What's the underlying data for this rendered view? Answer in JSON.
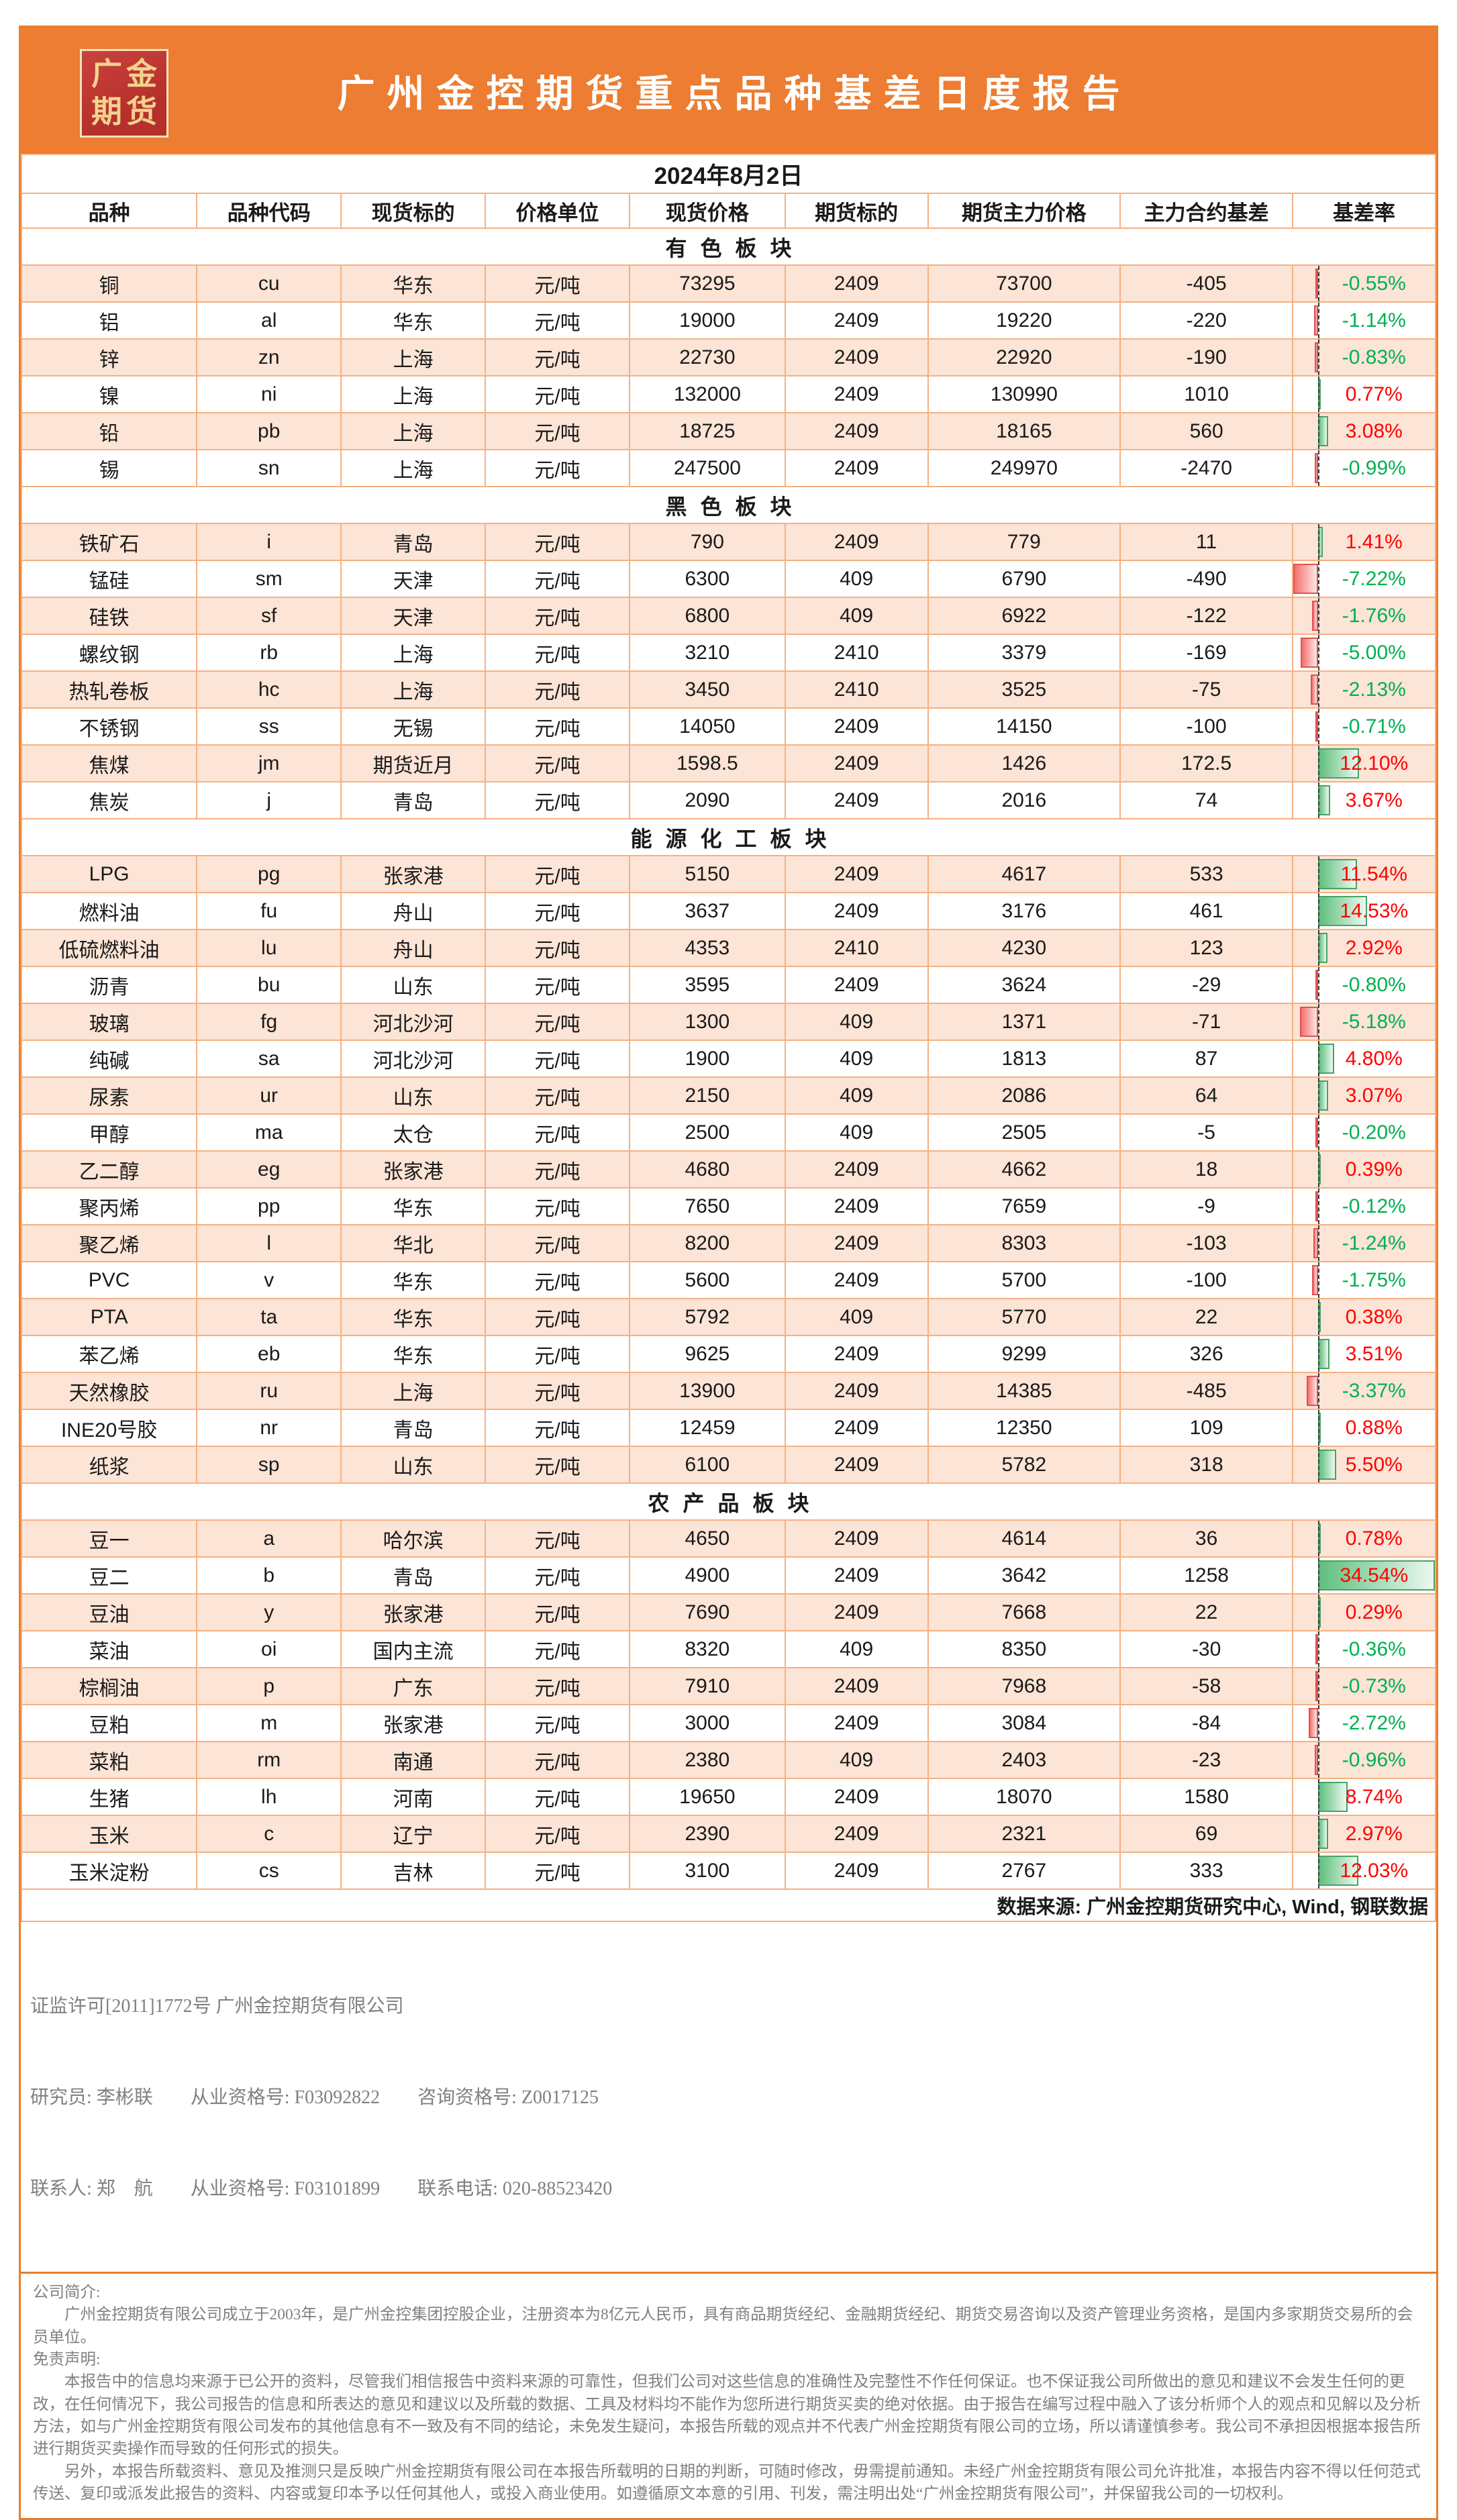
{
  "banner": {
    "logo_line1": "广金",
    "logo_line2": "期货",
    "title": "广州金控期货重点品种基差日度报告"
  },
  "date": "2024年8月2日",
  "table": {
    "columns": [
      "品种",
      "品种代码",
      "现货标的",
      "价格单位",
      "现货价格",
      "期货标的",
      "期货主力价格",
      "主力合约基差",
      "基差率"
    ],
    "databar": {
      "min": -7.22,
      "max": 34.54
    },
    "sections": [
      {
        "title": "有色板块",
        "rows": [
          [
            "铜",
            "cu",
            "华东",
            "元/吨",
            "73295",
            "2409",
            "73700",
            "-405",
            "-0.55%",
            -0.55
          ],
          [
            "铝",
            "al",
            "华东",
            "元/吨",
            "19000",
            "2409",
            "19220",
            "-220",
            "-1.14%",
            -1.14
          ],
          [
            "锌",
            "zn",
            "上海",
            "元/吨",
            "22730",
            "2409",
            "22920",
            "-190",
            "-0.83%",
            -0.83
          ],
          [
            "镍",
            "ni",
            "上海",
            "元/吨",
            "132000",
            "2409",
            "130990",
            "1010",
            "0.77%",
            0.77
          ],
          [
            "铅",
            "pb",
            "上海",
            "元/吨",
            "18725",
            "2409",
            "18165",
            "560",
            "3.08%",
            3.08
          ],
          [
            "锡",
            "sn",
            "上海",
            "元/吨",
            "247500",
            "2409",
            "249970",
            "-2470",
            "-0.99%",
            -0.99
          ]
        ]
      },
      {
        "title": "黑色板块",
        "rows": [
          [
            "铁矿石",
            "i",
            "青岛",
            "元/吨",
            "790",
            "2409",
            "779",
            "11",
            "1.41%",
            1.41
          ],
          [
            "锰硅",
            "sm",
            "天津",
            "元/吨",
            "6300",
            "409",
            "6790",
            "-490",
            "-7.22%",
            -7.22
          ],
          [
            "硅铁",
            "sf",
            "天津",
            "元/吨",
            "6800",
            "409",
            "6922",
            "-122",
            "-1.76%",
            -1.76
          ],
          [
            "螺纹钢",
            "rb",
            "上海",
            "元/吨",
            "3210",
            "2410",
            "3379",
            "-169",
            "-5.00%",
            -5.0
          ],
          [
            "热轧卷板",
            "hc",
            "上海",
            "元/吨",
            "3450",
            "2410",
            "3525",
            "-75",
            "-2.13%",
            -2.13
          ],
          [
            "不锈钢",
            "ss",
            "无锡",
            "元/吨",
            "14050",
            "2409",
            "14150",
            "-100",
            "-0.71%",
            -0.71
          ],
          [
            "焦煤",
            "jm",
            "期货近月",
            "元/吨",
            "1598.5",
            "2409",
            "1426",
            "172.5",
            "12.10%",
            12.1
          ],
          [
            "焦炭",
            "j",
            "青岛",
            "元/吨",
            "2090",
            "2409",
            "2016",
            "74",
            "3.67%",
            3.67
          ]
        ]
      },
      {
        "title": "能源化工板块",
        "rows": [
          [
            "LPG",
            "pg",
            "张家港",
            "元/吨",
            "5150",
            "2409",
            "4617",
            "533",
            "11.54%",
            11.54
          ],
          [
            "燃料油",
            "fu",
            "舟山",
            "元/吨",
            "3637",
            "2409",
            "3176",
            "461",
            "14.53%",
            14.53
          ],
          [
            "低硫燃料油",
            "lu",
            "舟山",
            "元/吨",
            "4353",
            "2410",
            "4230",
            "123",
            "2.92%",
            2.92
          ],
          [
            "沥青",
            "bu",
            "山东",
            "元/吨",
            "3595",
            "2409",
            "3624",
            "-29",
            "-0.80%",
            -0.8
          ],
          [
            "玻璃",
            "fg",
            "河北沙河",
            "元/吨",
            "1300",
            "409",
            "1371",
            "-71",
            "-5.18%",
            -5.18
          ],
          [
            "纯碱",
            "sa",
            "河北沙河",
            "元/吨",
            "1900",
            "409",
            "1813",
            "87",
            "4.80%",
            4.8
          ],
          [
            "尿素",
            "ur",
            "山东",
            "元/吨",
            "2150",
            "409",
            "2086",
            "64",
            "3.07%",
            3.07
          ],
          [
            "甲醇",
            "ma",
            "太仓",
            "元/吨",
            "2500",
            "409",
            "2505",
            "-5",
            "-0.20%",
            -0.2
          ],
          [
            "乙二醇",
            "eg",
            "张家港",
            "元/吨",
            "4680",
            "2409",
            "4662",
            "18",
            "0.39%",
            0.39
          ],
          [
            "聚丙烯",
            "pp",
            "华东",
            "元/吨",
            "7650",
            "2409",
            "7659",
            "-9",
            "-0.12%",
            -0.12
          ],
          [
            "聚乙烯",
            "l",
            "华北",
            "元/吨",
            "8200",
            "2409",
            "8303",
            "-103",
            "-1.24%",
            -1.24
          ],
          [
            "PVC",
            "v",
            "华东",
            "元/吨",
            "5600",
            "2409",
            "5700",
            "-100",
            "-1.75%",
            -1.75
          ],
          [
            "PTA",
            "ta",
            "华东",
            "元/吨",
            "5792",
            "409",
            "5770",
            "22",
            "0.38%",
            0.38
          ],
          [
            "苯乙烯",
            "eb",
            "华东",
            "元/吨",
            "9625",
            "2409",
            "9299",
            "326",
            "3.51%",
            3.51
          ],
          [
            "天然橡胶",
            "ru",
            "上海",
            "元/吨",
            "13900",
            "2409",
            "14385",
            "-485",
            "-3.37%",
            -3.37
          ],
          [
            "INE20号胶",
            "nr",
            "青岛",
            "元/吨",
            "12459",
            "2409",
            "12350",
            "109",
            "0.88%",
            0.88
          ],
          [
            "纸浆",
            "sp",
            "山东",
            "元/吨",
            "6100",
            "2409",
            "5782",
            "318",
            "5.50%",
            5.5
          ]
        ]
      },
      {
        "title": "农产品板块",
        "rows": [
          [
            "豆一",
            "a",
            "哈尔滨",
            "元/吨",
            "4650",
            "2409",
            "4614",
            "36",
            "0.78%",
            0.78
          ],
          [
            "豆二",
            "b",
            "青岛",
            "元/吨",
            "4900",
            "2409",
            "3642",
            "1258",
            "34.54%",
            34.54
          ],
          [
            "豆油",
            "y",
            "张家港",
            "元/吨",
            "7690",
            "2409",
            "7668",
            "22",
            "0.29%",
            0.29
          ],
          [
            "菜油",
            "oi",
            "国内主流",
            "元/吨",
            "8320",
            "409",
            "8350",
            "-30",
            "-0.36%",
            -0.36
          ],
          [
            "棕榈油",
            "p",
            "广东",
            "元/吨",
            "7910",
            "2409",
            "7968",
            "-58",
            "-0.73%",
            -0.73
          ],
          [
            "豆粕",
            "m",
            "张家港",
            "元/吨",
            "3000",
            "2409",
            "3084",
            "-84",
            "-2.72%",
            -2.72
          ],
          [
            "菜粕",
            "rm",
            "南通",
            "元/吨",
            "2380",
            "409",
            "2403",
            "-23",
            "-0.96%",
            -0.96
          ],
          [
            "生猪",
            "lh",
            "河南",
            "元/吨",
            "19650",
            "2409",
            "18070",
            "1580",
            "8.74%",
            8.74
          ],
          [
            "玉米",
            "c",
            "辽宁",
            "元/吨",
            "2390",
            "2409",
            "2321",
            "69",
            "2.97%",
            2.97
          ],
          [
            "玉米淀粉",
            "cs",
            "吉林",
            "元/吨",
            "3100",
            "2409",
            "2767",
            "333",
            "12.03%",
            12.03
          ]
        ]
      }
    ],
    "source_note": "数据来源: 广州金控期货研究中心, Wind, 钢联数据"
  },
  "footer": {
    "license": "证监许可[2011]1772号 广州金控期货有限公司",
    "contact_lines": [
      "研究员: 李彬联　　从业资格号: F03092822　　咨询资格号: Z0017125",
      "联系人: 郑　航　　从业资格号: F03101899　　联系电话: 020-88523420"
    ],
    "intro_label": "公司简介:",
    "intro_text": "广州金控期货有限公司成立于2003年，是广州金控集团控股企业，注册资本为8亿元人民币，具有商品期货经纪、金融期货经纪、期货交易咨询以及资产管理业务资格，是国内多家期货交易所的会员单位。",
    "disclaimer_label": "免责声明:",
    "disclaimer_paragraphs": [
      "本报告中的信息均来源于已公开的资料，尽管我们相信报告中资料来源的可靠性，但我们公司对这些信息的准确性及完整性不作任何保证。也不保证我公司所做出的意见和建议不会发生任何的更改，在任何情况下，我公司报告的信息和所表达的意见和建议以及所载的数据、工具及材料均不能作为您所进行期货买卖的绝对依据。由于报告在编写过程中融入了该分析师个人的观点和见解以及分析方法，如与广州金控期货有限公司发布的其他信息有不一致及有不同的结论，未免发生疑问，本报告所载的观点并不代表广州金控期货有限公司的立场，所以请谨慎参考。我公司不承担因根据本报告所进行期货买卖操作而导致的任何形式的损失。",
      "另外，本报告所载资料、意见及推测只是反映广州金控期货有限公司在本报告所载明的日期的判断，可随时修改，毋需提前通知。未经广州金控期货有限公司允许批准，本报告内容不得以任何范式传送、复印或派发此报告的资料、内容或复印本予以任何其他人，或投入商业使用。如遵循原文本意的引用、刊发，需注明出处“广州金控期货有限公司”，并保留我公司的一切权利。"
    ]
  },
  "colors": {
    "banner": "#ec7d32",
    "outer_border": "#e87e2e",
    "grid": "#f4b183",
    "row_alt": "#fce4d6",
    "logo_red": "#b52f2b",
    "logo_gold": "#f2d28e",
    "contract": "#c00000",
    "pos": "#ff0000",
    "neg": "#00b050",
    "bar_pos": "#5fbf7d",
    "bar_neg": "#f4716d",
    "gray": "#808080"
  }
}
